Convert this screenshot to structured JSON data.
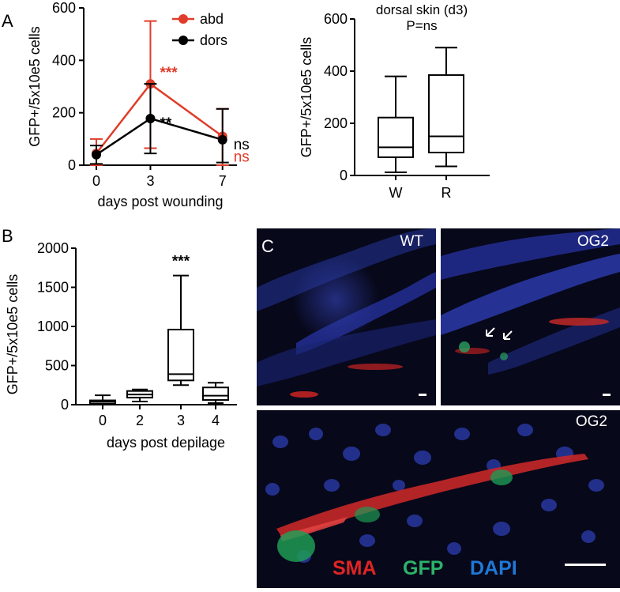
{
  "panels": {
    "A": "A",
    "B": "B",
    "C": "C"
  },
  "chart_data": [
    {
      "id": "A-line",
      "type": "line",
      "ylabel": "GFP+/5x10e5 cells",
      "xlabel": "days post wounding",
      "x": [
        0,
        3,
        7
      ],
      "xticks": [
        "0",
        "3",
        "7"
      ],
      "ylim": [
        0,
        600
      ],
      "yticks": [
        "0",
        "200",
        "400",
        "600"
      ],
      "legend_position": "top-right",
      "series": [
        {
          "name": "abd",
          "color": "#e03c2a",
          "values": [
            45,
            310,
            110
          ],
          "err_low": [
            0,
            65,
            0
          ],
          "err_high": [
            100,
            550,
            215
          ],
          "annotations": [
            "",
            "***",
            "ns"
          ]
        },
        {
          "name": "dors",
          "color": "#000000",
          "values": [
            40,
            178,
            97
          ],
          "err_low": [
            5,
            45,
            10
          ],
          "err_high": [
            75,
            310,
            215
          ],
          "annotations": [
            "",
            "**",
            "ns"
          ]
        }
      ]
    },
    {
      "id": "A-box",
      "type": "box",
      "title": "dorsal skin (d3)",
      "subtitle": "P=ns",
      "ylabel": "GFP+/5x10e5 cells",
      "categories": [
        "W",
        "R"
      ],
      "ylim": [
        0,
        600
      ],
      "yticks": [
        "0",
        "200",
        "400",
        "600"
      ],
      "boxes": [
        {
          "min": 12,
          "q1": 70,
          "median": 108,
          "q3": 222,
          "max": 380
        },
        {
          "min": 35,
          "q1": 88,
          "median": 150,
          "q3": 385,
          "max": 490
        }
      ]
    },
    {
      "id": "B-box",
      "type": "box",
      "ylabel": "GFP+/5x10e5 cells",
      "xlabel": "days post depilage",
      "categories": [
        "0",
        "2",
        "3",
        "4"
      ],
      "ylim": [
        0,
        2000
      ],
      "yticks": [
        "0",
        "500",
        "1000",
        "1500",
        "2000"
      ],
      "boxes": [
        {
          "min": 0,
          "q1": 10,
          "median": 35,
          "q3": 55,
          "max": 120
        },
        {
          "min": 40,
          "q1": 90,
          "median": 130,
          "q3": 175,
          "max": 195
        },
        {
          "min": 250,
          "q1": 310,
          "median": 390,
          "q3": 960,
          "max": 1650
        },
        {
          "min": 20,
          "q1": 60,
          "median": 115,
          "q3": 220,
          "max": 280
        }
      ],
      "annotations": [
        "",
        "",
        "***",
        ""
      ]
    }
  ],
  "images": {
    "wt": {
      "label": "WT"
    },
    "og2_top": {
      "label": "OG2"
    },
    "og2_bottom": {
      "label": "OG2"
    }
  },
  "stain_legend": [
    {
      "text": "SMA",
      "color": "#e02424"
    },
    {
      "text": "GFP",
      "color": "#2bb36a"
    },
    {
      "text": "DAPI",
      "color": "#1f78d6"
    }
  ]
}
